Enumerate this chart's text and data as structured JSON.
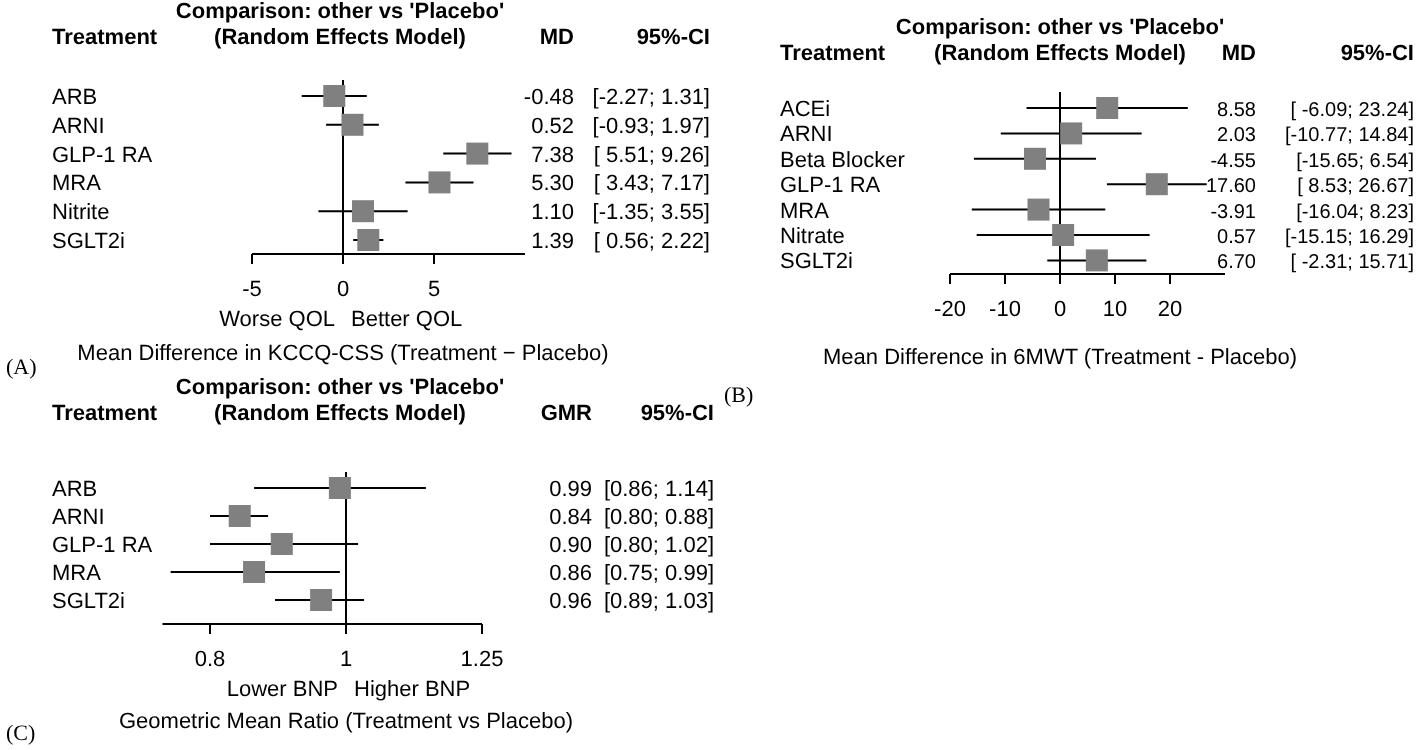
{
  "chart_data": [
    {
      "type": "scatter",
      "orientation": "horizontal",
      "title": "Comparison: other vs 'Placebo'",
      "subtitle": "(Random Effects Model)",
      "xlabel": "Mean Difference in KCCQ-CSS (Treatment − Placebo)",
      "color": "#808080",
      "marker": "square",
      "categories": [
        "ARB",
        "ARNI",
        "GLP-1 RA",
        "MRA",
        "Nitrite",
        "SGLT2i"
      ],
      "values": [
        -0.48,
        0.52,
        7.38,
        5.3,
        1.1,
        1.39
      ],
      "errors": [
        [
          -2.27,
          1.31
        ],
        [
          -0.93,
          1.97
        ],
        [
          5.51,
          9.26
        ],
        [
          3.43,
          7.17
        ],
        [
          -1.35,
          3.55
        ],
        [
          0.56,
          2.22
        ]
      ],
      "value_labels": [
        "-0.48 [-2.27; 1.31]",
        "0.52 [-0.93; 1.97]",
        "7.38 [ 5.51; 9.26]",
        "5.30 [ 3.43; 7.17]",
        "1.10 [-1.35; 3.55]",
        "1.39 [ 0.56; 2.22]"
      ],
      "xlim": [
        -5,
        10
      ],
      "xticks": [
        -5,
        0,
        5
      ],
      "ref_lines": [
        {
          "axis": "x",
          "value": 0
        }
      ],
      "grid": false,
      "legend": false,
      "annotations": [
        "(A)",
        "Treatment",
        "MD",
        "95%-CI",
        "Worse QOL",
        "Better QOL"
      ]
    },
    {
      "type": "scatter",
      "orientation": "horizontal",
      "title": "Comparison: other vs 'Placebo'",
      "subtitle": "(Random Effects Model)",
      "xlabel": "Mean Difference in 6MWT (Treatment - Placebo)",
      "color": "#808080",
      "marker": "square",
      "categories": [
        "ACEi",
        "ARNI",
        "Beta Blocker",
        "GLP-1 RA",
        "MRA",
        "Nitrate",
        "SGLT2i"
      ],
      "values": [
        8.58,
        2.03,
        -4.55,
        17.6,
        -3.91,
        0.57,
        6.7
      ],
      "errors": [
        [
          -6.09,
          23.24
        ],
        [
          -10.77,
          14.84
        ],
        [
          -15.65,
          6.54
        ],
        [
          8.53,
          26.67
        ],
        [
          -16.04,
          8.23
        ],
        [
          -15.15,
          16.29
        ],
        [
          -2.31,
          15.71
        ]
      ],
      "value_labels": [
        "8.58 [ -6.09; 23.24]",
        "2.03 [-10.77; 14.84]",
        "-4.55 [-15.65; 6.54]",
        "17.60 [ 8.53; 26.67]",
        "-3.91 [-16.04; 8.23]",
        "0.57 [-15.15; 16.29]",
        "6.70 [ -2.31; 15.71]"
      ],
      "xlim": [
        -20,
        30
      ],
      "xticks": [
        -20,
        -10,
        0,
        10,
        20
      ],
      "ref_lines": [
        {
          "axis": "x",
          "value": 0
        }
      ],
      "grid": false,
      "legend": false,
      "annotations": [
        "(B)",
        "Treatment",
        "MD",
        "95%-CI"
      ]
    },
    {
      "type": "scatter",
      "orientation": "horizontal",
      "title": "Comparison: other vs 'Placebo'",
      "subtitle": "(Random Effects Model)",
      "xlabel": "Geometric Mean Ratio (Treatment vs Placebo)",
      "color": "#808080",
      "marker": "square",
      "log": "x",
      "categories": [
        "ARB",
        "ARNI",
        "GLP-1 RA",
        "MRA",
        "SGLT2i"
      ],
      "values": [
        0.99,
        0.84,
        0.9,
        0.86,
        0.96
      ],
      "errors": [
        [
          0.86,
          1.14
        ],
        [
          0.8,
          0.88
        ],
        [
          0.8,
          1.02
        ],
        [
          0.75,
          0.99
        ],
        [
          0.89,
          1.03
        ]
      ],
      "value_labels": [
        "0.99 [0.86; 1.14]",
        "0.84 [0.80; 0.88]",
        "0.90 [0.80; 1.02]",
        "0.86 [0.75; 0.99]",
        "0.96 [0.89; 1.03]"
      ],
      "xlim": [
        0.74,
        1.25
      ],
      "xticks": [
        0.8,
        1,
        1.25
      ],
      "ref_lines": [
        {
          "axis": "x",
          "value": 1
        }
      ],
      "grid": false,
      "legend": false,
      "annotations": [
        "(C)",
        "Treatment",
        "GMR",
        "95%-CI",
        "Lower BNP",
        "Higher BNP"
      ]
    }
  ]
}
